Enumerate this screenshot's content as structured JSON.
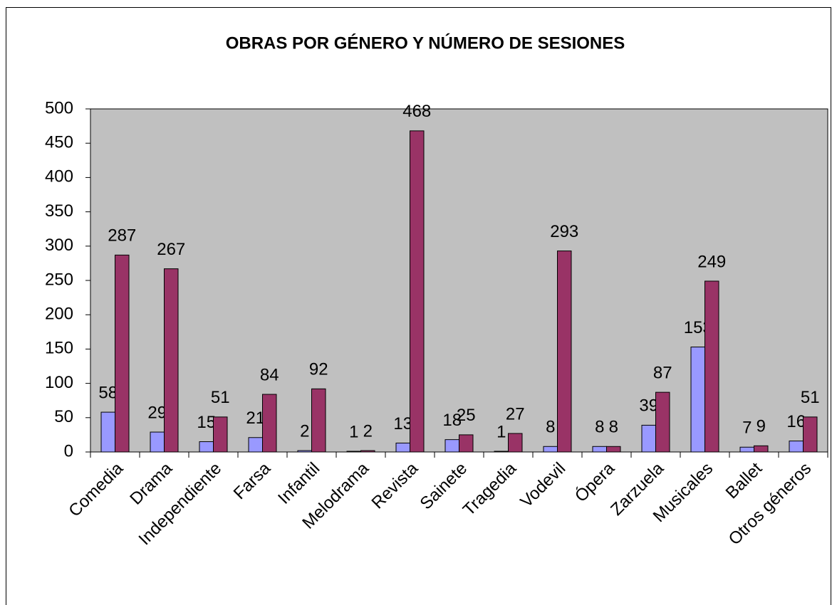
{
  "chart_data": {
    "type": "bar",
    "title": "OBRAS POR GÉNERO Y NÚMERO DE SESIONES",
    "categories": [
      "Comedia",
      "Drama",
      "Independiente",
      "Farsa",
      "Infantil",
      "Melodrama",
      "Revista",
      "Sainete",
      "Tragedia",
      "Vodevil",
      "Ópera",
      "Zarzuela",
      "Musicales",
      "Ballet",
      "Otros géneros"
    ],
    "series": [
      {
        "color": "#9999ff",
        "values": [
          58,
          29,
          15,
          21,
          2,
          1,
          13,
          18,
          1,
          8,
          8,
          39,
          153,
          7,
          16
        ]
      },
      {
        "color": "#993366",
        "values": [
          287,
          267,
          51,
          84,
          92,
          2,
          468,
          25,
          27,
          293,
          8,
          87,
          249,
          9,
          51
        ]
      }
    ],
    "ylim": [
      0,
      500
    ],
    "yticks": [
      0,
      50,
      100,
      150,
      200,
      250,
      300,
      350,
      400,
      450,
      500
    ],
    "grid": false
  }
}
